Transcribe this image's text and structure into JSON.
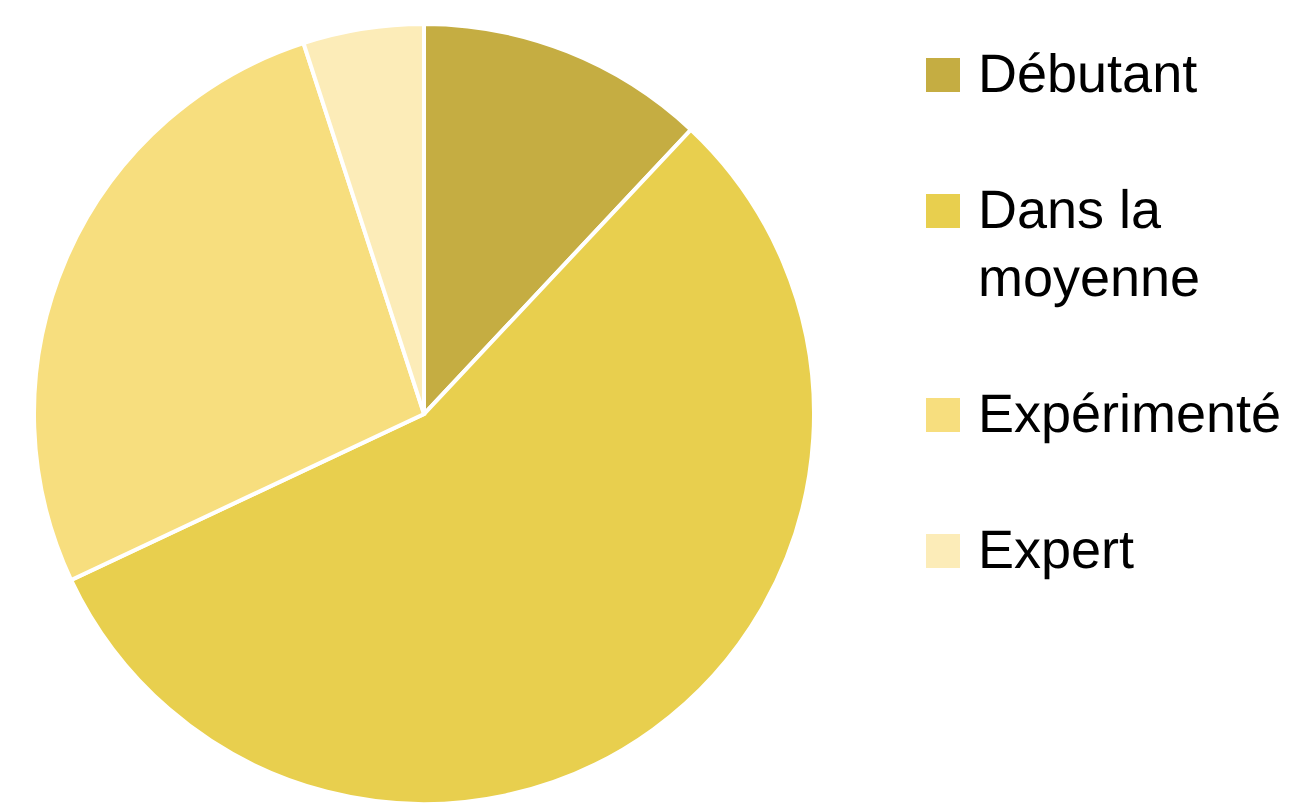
{
  "chart_data": {
    "type": "pie",
    "categories": [
      "Débutant",
      "Dans la moyenne",
      "Expérimenté",
      "Expert"
    ],
    "values": [
      12,
      56,
      27,
      5
    ],
    "colors": [
      "#c5ad42",
      "#e8cf4e",
      "#f7de7e",
      "#fcecb8"
    ],
    "legend": "right"
  }
}
